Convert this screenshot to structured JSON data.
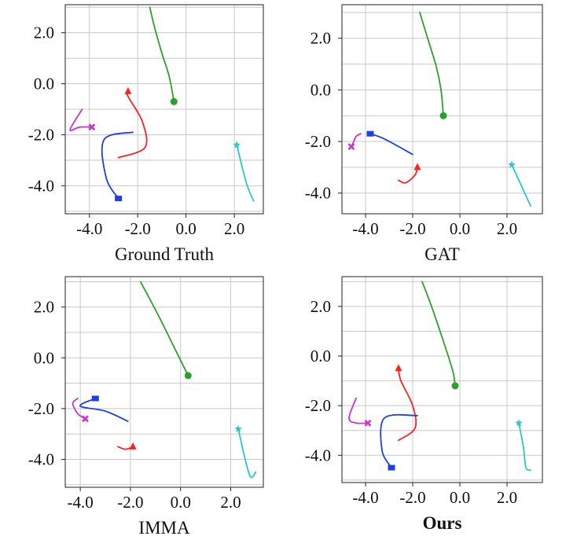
{
  "chart_data": [
    {
      "type": "line",
      "title": "Ground Truth",
      "title_bold": false,
      "xlim": [
        -5.0,
        3.2
      ],
      "ylim": [
        -5.1,
        3.1
      ],
      "xticks": [
        -4.0,
        -2.0,
        0.0,
        2.0
      ],
      "xtick_labels": [
        "-4.0",
        "-2.0",
        "0.0",
        "2.0"
      ],
      "yticks": [
        2.0,
        0.0,
        -2.0,
        -4.0
      ],
      "ytick_labels": [
        "2.0",
        "0.0",
        "-2.0",
        "-4.0"
      ],
      "grid": true,
      "series": [
        {
          "color": "#2ca02c",
          "marker": "circle",
          "points": [
            [
              -1.5,
              3.0
            ],
            [
              -1.3,
              2.2
            ],
            [
              -1.0,
              1.2
            ],
            [
              -0.7,
              0.3
            ],
            [
              -0.5,
              -0.7
            ],
            [
              -0.5,
              -0.7
            ]
          ]
        },
        {
          "color": "#ff2020",
          "marker": "triangle",
          "points": [
            [
              -2.8,
              -2.9
            ],
            [
              -1.7,
              -2.5
            ],
            [
              -1.8,
              -1.5
            ],
            [
              -2.4,
              -0.5
            ],
            [
              -2.4,
              -0.3
            ]
          ]
        },
        {
          "color": "#1f3fe0",
          "marker": "square",
          "points": [
            [
              -2.2,
              -1.9
            ],
            [
              -3.4,
              -2.2
            ],
            [
              -3.3,
              -3.7
            ],
            [
              -2.8,
              -4.5
            ]
          ]
        },
        {
          "color": "#cc33cc",
          "marker": "x",
          "points": [
            [
              -4.3,
              -1.0
            ],
            [
              -4.8,
              -1.8
            ],
            [
              -4.4,
              -1.7
            ],
            [
              -3.9,
              -1.7
            ]
          ]
        },
        {
          "color": "#2ac8c8",
          "marker": "star",
          "points": [
            [
              2.8,
              -4.6
            ],
            [
              2.5,
              -3.9
            ],
            [
              2.1,
              -2.4
            ]
          ]
        }
      ]
    },
    {
      "type": "line",
      "title": "GAT",
      "title_bold": false,
      "xlim": [
        -5.0,
        3.5
      ],
      "ylim": [
        -4.8,
        3.3
      ],
      "xticks": [
        -4.0,
        -2.0,
        0.0,
        2.0
      ],
      "xtick_labels": [
        "-4.0",
        "-2.0",
        "0.0",
        "2.0"
      ],
      "yticks": [
        2.0,
        0.0,
        -2.0,
        -4.0
      ],
      "ytick_labels": [
        "2.0",
        "0.0",
        "-2.0",
        "-4.0"
      ],
      "grid": true,
      "series": [
        {
          "color": "#2ca02c",
          "marker": "circle",
          "points": [
            [
              -1.7,
              3.0
            ],
            [
              -1.4,
              2.1
            ],
            [
              -1.0,
              0.9
            ],
            [
              -0.8,
              0.0
            ],
            [
              -0.7,
              -1.0
            ]
          ]
        },
        {
          "color": "#ff2020",
          "marker": "triangle",
          "points": [
            [
              -2.6,
              -3.5
            ],
            [
              -2.3,
              -3.6
            ],
            [
              -1.9,
              -3.3
            ],
            [
              -1.8,
              -3.0
            ]
          ]
        },
        {
          "color": "#1f3fe0",
          "marker": "square",
          "points": [
            [
              -2.0,
              -2.5
            ],
            [
              -3.2,
              -1.9
            ],
            [
              -3.8,
              -1.7
            ]
          ]
        },
        {
          "color": "#cc33cc",
          "marker": "x",
          "points": [
            [
              -4.2,
              -1.7
            ],
            [
              -4.4,
              -1.8
            ],
            [
              -4.5,
              -2.0
            ],
            [
              -4.6,
              -2.2
            ]
          ]
        },
        {
          "color": "#2ac8c8",
          "marker": "star",
          "points": [
            [
              3.0,
              -4.5
            ],
            [
              2.7,
              -3.9
            ],
            [
              2.2,
              -2.9
            ]
          ]
        }
      ]
    },
    {
      "type": "line",
      "title": "IMMA",
      "title_bold": false,
      "xlim": [
        -4.6,
        3.3
      ],
      "ylim": [
        -5.1,
        3.2
      ],
      "xticks": [
        -4.0,
        -2.0,
        0.0,
        2.0
      ],
      "xtick_labels": [
        "-4.0",
        "-2.0",
        "0.0",
        "2.0"
      ],
      "yticks": [
        2.0,
        0.0,
        -2.0,
        -4.0
      ],
      "ytick_labels": [
        "2.0",
        "0.0",
        "-2.0",
        "-4.0"
      ],
      "grid": true,
      "series": [
        {
          "color": "#2ca02c",
          "marker": "circle",
          "points": [
            [
              -1.6,
              3.0
            ],
            [
              -0.9,
              1.7
            ],
            [
              -0.2,
              0.3
            ],
            [
              0.3,
              -0.7
            ]
          ]
        },
        {
          "color": "#ff2020",
          "marker": "triangle",
          "points": [
            [
              -2.5,
              -3.5
            ],
            [
              -2.2,
              -3.6
            ],
            [
              -1.9,
              -3.5
            ]
          ]
        },
        {
          "color": "#1f3fe0",
          "marker": "square",
          "points": [
            [
              -2.1,
              -2.5
            ],
            [
              -3.0,
              -2.1
            ],
            [
              -4.0,
              -1.9
            ],
            [
              -3.4,
              -1.6
            ]
          ]
        },
        {
          "color": "#cc33cc",
          "marker": "x",
          "points": [
            [
              -4.1,
              -1.6
            ],
            [
              -4.3,
              -1.8
            ],
            [
              -4.1,
              -2.2
            ],
            [
              -3.8,
              -2.4
            ]
          ]
        },
        {
          "color": "#2ac8c8",
          "marker": "star",
          "points": [
            [
              3.0,
              -4.5
            ],
            [
              2.8,
              -4.7
            ],
            [
              2.6,
              -4.1
            ],
            [
              2.3,
              -2.8
            ]
          ]
        }
      ]
    },
    {
      "type": "line",
      "title": "Ours",
      "title_bold": true,
      "xlim": [
        -5.0,
        3.5
      ],
      "ylim": [
        -5.1,
        3.2
      ],
      "xticks": [
        -4.0,
        -2.0,
        0.0,
        2.0
      ],
      "xtick_labels": [
        "-4.0",
        "-2.0",
        "0.0",
        "2.0"
      ],
      "yticks": [
        2.0,
        0.0,
        -2.0,
        -4.0
      ],
      "ytick_labels": [
        "2.0",
        "0.0",
        "-2.0",
        "-4.0"
      ],
      "grid": true,
      "series": [
        {
          "color": "#2ca02c",
          "marker": "circle",
          "points": [
            [
              -1.6,
              3.0
            ],
            [
              -1.2,
              2.0
            ],
            [
              -0.7,
              0.6
            ],
            [
              -0.3,
              -0.6
            ],
            [
              -0.2,
              -1.2
            ]
          ]
        },
        {
          "color": "#ff2020",
          "marker": "triangle",
          "points": [
            [
              -2.6,
              -3.4
            ],
            [
              -1.9,
              -2.9
            ],
            [
              -2.0,
              -2.0
            ],
            [
              -2.5,
              -1.0
            ],
            [
              -2.6,
              -0.5
            ]
          ]
        },
        {
          "color": "#1f3fe0",
          "marker": "square",
          "points": [
            [
              -1.8,
              -2.4
            ],
            [
              -3.2,
              -2.5
            ],
            [
              -3.3,
              -3.8
            ],
            [
              -2.9,
              -4.5
            ]
          ]
        },
        {
          "color": "#cc33cc",
          "marker": "x",
          "points": [
            [
              -4.4,
              -1.7
            ],
            [
              -4.7,
              -2.5
            ],
            [
              -4.4,
              -2.7
            ],
            [
              -3.9,
              -2.7
            ]
          ]
        },
        {
          "color": "#2ac8c8",
          "marker": "star",
          "points": [
            [
              3.0,
              -4.6
            ],
            [
              2.8,
              -4.5
            ],
            [
              2.7,
              -3.7
            ],
            [
              2.5,
              -2.7
            ]
          ]
        }
      ]
    }
  ]
}
